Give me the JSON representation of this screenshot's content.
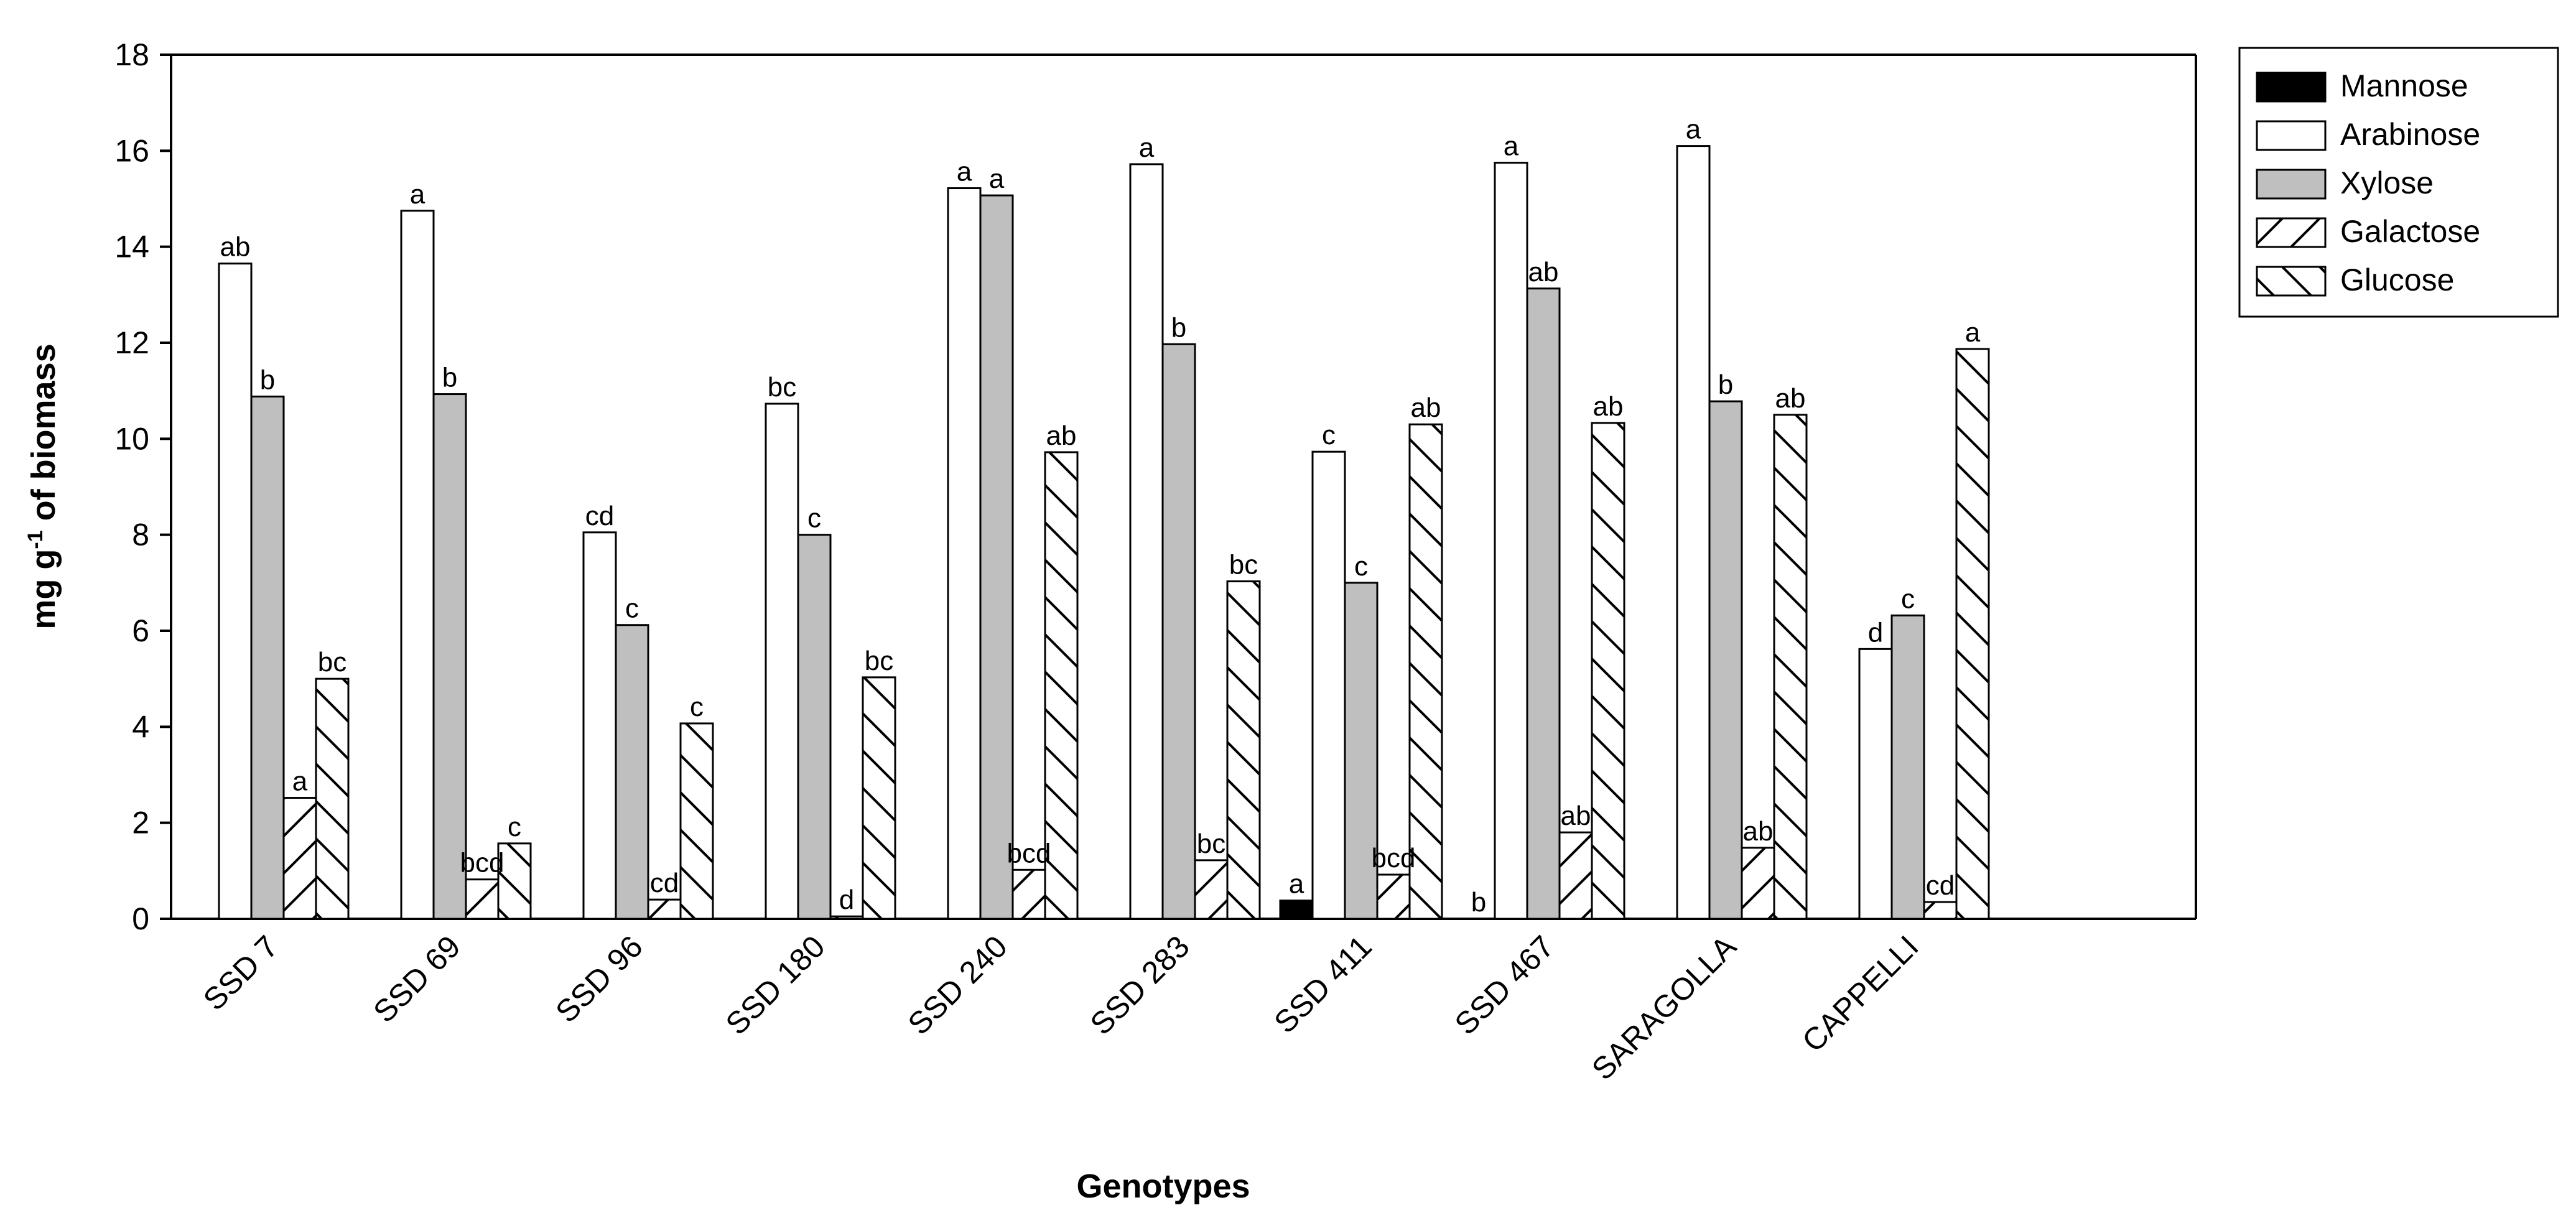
{
  "chart_data": {
    "type": "bar",
    "title": "",
    "xlabel": "Genotypes",
    "ylabel_main": "mg g",
    "ylabel_sup": "-1",
    "ylabel_tail": " of biomass",
    "ylim": [
      0,
      18
    ],
    "yticks": [
      0,
      2,
      4,
      6,
      8,
      10,
      12,
      14,
      16,
      18
    ],
    "grid": false,
    "legend_position": "top-right",
    "categories": [
      "SSD 7",
      "SSD 69",
      "SSD 96",
      "SSD 180",
      "SSD 240",
      "SSD 283",
      "SSD 411",
      "SSD 467",
      "SARAGOLLA",
      "CAPPELLI"
    ],
    "series": [
      {
        "name": "Mannose",
        "pattern": "solid-black",
        "values": [
          0,
          0,
          0,
          0,
          0,
          0,
          0.38,
          0,
          0,
          0
        ],
        "labels": [
          "",
          "",
          "",
          "",
          "",
          "",
          "a",
          "b",
          "",
          ""
        ]
      },
      {
        "name": "Arabinose",
        "pattern": "white",
        "values": [
          13.65,
          14.75,
          8.05,
          10.73,
          15.22,
          15.72,
          9.73,
          15.75,
          16.1,
          5.62
        ],
        "labels": [
          "ab",
          "a",
          "cd",
          "bc",
          "a",
          "a",
          "c",
          "a",
          "a",
          "d"
        ]
      },
      {
        "name": "Xylose",
        "pattern": "gray",
        "values": [
          10.88,
          10.93,
          6.12,
          8.0,
          15.07,
          11.97,
          7.0,
          13.13,
          10.78,
          6.32
        ],
        "labels": [
          "b",
          "b",
          "c",
          "c",
          "a",
          "b",
          "c",
          "ab",
          "b",
          "c"
        ]
      },
      {
        "name": "Galactose",
        "pattern": "hatch-forward",
        "values": [
          2.52,
          0.82,
          0.4,
          0.05,
          1.02,
          1.22,
          0.92,
          1.8,
          1.48,
          0.35
        ],
        "labels": [
          "a",
          "bcd",
          "cd",
          "d",
          "bcd",
          "bc",
          "bcd",
          "ab",
          "ab",
          "cd"
        ]
      },
      {
        "name": "Glucose",
        "pattern": "hatch-backward",
        "values": [
          5.0,
          1.57,
          4.07,
          5.03,
          9.72,
          7.03,
          10.3,
          10.33,
          10.5,
          11.87
        ],
        "labels": [
          "bc",
          "c",
          "c",
          "bc",
          "ab",
          "bc",
          "ab",
          "ab",
          "ab",
          "a"
        ]
      }
    ]
  },
  "colors": {
    "axis": "#000000",
    "mannose": "#000000",
    "arabinose": "#ffffff",
    "xylose": "#bfbfbf",
    "hatch": "#000000"
  }
}
